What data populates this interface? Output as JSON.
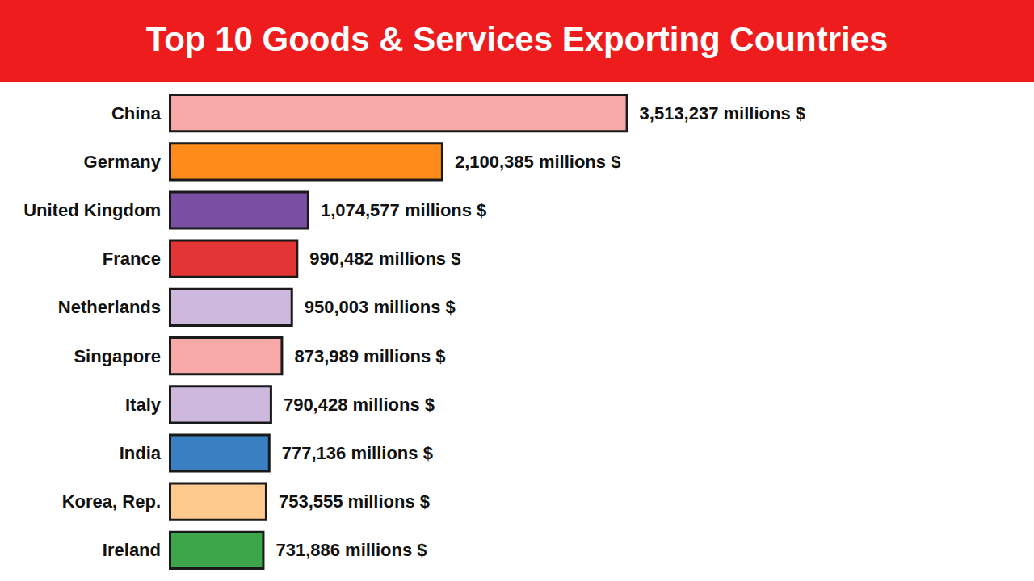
{
  "chart_data": {
    "type": "bar",
    "title": "Top 10 Goods & Services Exporting Countries",
    "orientation": "horizontal",
    "categories": [
      "China",
      "Germany",
      "United Kingdom",
      "France",
      "Netherlands",
      "Singapore",
      "Italy",
      "India",
      "Korea, Rep.",
      "Ireland"
    ],
    "values": [
      3513237,
      2100385,
      1074577,
      990482,
      950003,
      873989,
      790428,
      777136,
      753555,
      731886
    ],
    "value_labels": [
      "3,513,237 millions $",
      "2,100,385 millions $",
      "1,074,577 millions $",
      "990,482 millions $",
      "950,003 millions $",
      "873,989 millions $",
      "790,428 millions $",
      "777,136 millions $",
      "753,555 millions $",
      "731,886 millions $"
    ],
    "colors": [
      "#f7a9a8",
      "#ff8c1a",
      "#7a4fa3",
      "#e33535",
      "#cdb8de",
      "#f7a9a8",
      "#cdb8de",
      "#3a7fc1",
      "#fdc98c",
      "#3da64a"
    ],
    "xlim": [
      0,
      6000000
    ],
    "data_labels": true,
    "tick_labels": "y",
    "grid": false
  }
}
